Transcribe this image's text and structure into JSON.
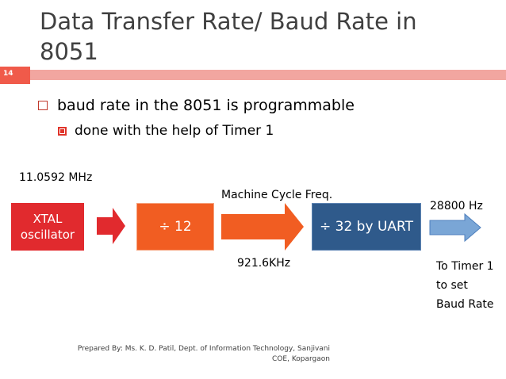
{
  "slide": {
    "title_line1": "Data Transfer Rate/ Baud Rate in",
    "title_line2": "8051",
    "number": "14",
    "bullet_main": "baud rate in the 8051 is programmable",
    "bullet_sub": "done with the help of Timer 1"
  },
  "diagram": {
    "input_freq": "11.0592 MHz",
    "xtal_line1": "XTAL",
    "xtal_line2": "oscillator",
    "div12_label": "÷ 12",
    "machine_cycle_label": "Machine Cycle Freq.",
    "machine_freq": "921.6KHz",
    "div32_label": "÷ 32 by UART",
    "output_freq": "28800 Hz",
    "note_line1": "To Timer 1",
    "note_line2": "to set",
    "note_line3": "Baud Rate"
  },
  "footer": {
    "line1": "Prepared By: Ms. K. D. Patil, Dept. of Information Technology, Sanjivani",
    "line2": "COE, Kopargaon"
  },
  "colors": {
    "accent": "#f05a4a",
    "xtal_box": "#e12a2e",
    "div12_box": "#f15d22",
    "div32_box": "#2f5a8b",
    "output_arrow": "#7aa6d6"
  }
}
